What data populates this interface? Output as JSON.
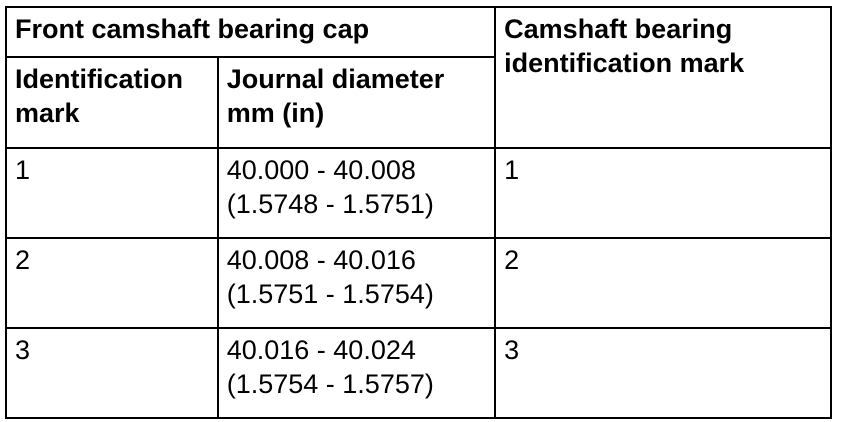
{
  "table": {
    "header": {
      "group_title": "Front camshaft bearing cap",
      "col1_label": "Identification mark",
      "col2_label_line1": "Journal diameter",
      "col2_label_line2": "mm (in)",
      "col3_label": "Camshaft bearing identification mark"
    },
    "rows": [
      {
        "id_mark": "1",
        "diameter_mm": "40.000 - 40.008",
        "diameter_in": "(1.5748 - 1.5751)",
        "bearing_mark": "1"
      },
      {
        "id_mark": "2",
        "diameter_mm": "40.008 - 40.016",
        "diameter_in": "(1.5751 - 1.5754)",
        "bearing_mark": "2"
      },
      {
        "id_mark": "3",
        "diameter_mm": "40.016 - 40.024",
        "diameter_in": "(1.5754 - 1.5757)",
        "bearing_mark": "3"
      }
    ]
  }
}
